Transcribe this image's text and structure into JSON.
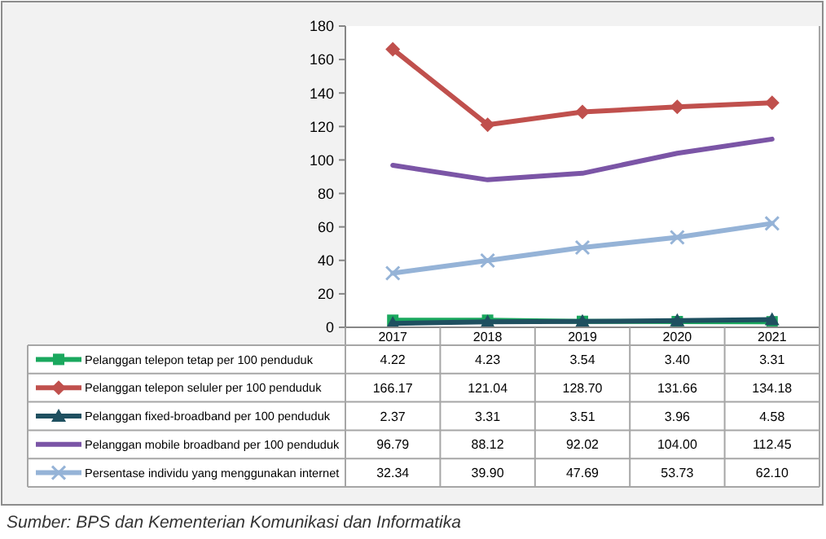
{
  "chart_data": {
    "type": "line",
    "categories": [
      "2017",
      "2018",
      "2019",
      "2020",
      "2021"
    ],
    "series": [
      {
        "name": "Pelanggan telepon tetap per 100 penduduk",
        "color": "#1aa85e",
        "marker": "square",
        "values": [
          4.22,
          4.23,
          3.54,
          3.4,
          3.31
        ],
        "value_labels": [
          "4.22",
          "4.23",
          "3.54",
          "3.40",
          "3.31"
        ]
      },
      {
        "name": "Pelanggan telepon seluler per 100 penduduk",
        "color": "#c0504d",
        "marker": "diamond",
        "values": [
          166.17,
          121.04,
          128.7,
          131.66,
          134.18
        ],
        "value_labels": [
          "166.17",
          "121.04",
          "128.70",
          "131.66",
          "134.18"
        ]
      },
      {
        "name": "Pelanggan fixed-broadband per 100 penduduk",
        "color": "#1f5060",
        "marker": "triangle",
        "values": [
          2.37,
          3.31,
          3.51,
          3.96,
          4.58
        ],
        "value_labels": [
          "2.37",
          "3.31",
          "3.51",
          "3.96",
          "4.58"
        ]
      },
      {
        "name": "Pelanggan mobile broadband per 100 penduduk",
        "color": "#7b55a6",
        "marker": "none",
        "values": [
          96.79,
          88.12,
          92.02,
          104.0,
          112.45
        ],
        "value_labels": [
          "96.79",
          "88.12",
          "92.02",
          "104.00",
          "112.45"
        ]
      },
      {
        "name": "Persentase individu yang menggunakan internet",
        "color": "#95b3d7",
        "marker": "cross",
        "values": [
          32.34,
          39.9,
          47.69,
          53.73,
          62.1
        ],
        "value_labels": [
          "32.34",
          "39.90",
          "47.69",
          "53.73",
          "62.10"
        ]
      }
    ],
    "ylim": [
      0,
      180
    ],
    "yticks": [
      0,
      20,
      40,
      60,
      80,
      100,
      120,
      140,
      160,
      180
    ],
    "grid": false,
    "legend": "bottom",
    "annotations": [
      "Sumber: BPS dan Kementerian Komunikasi dan Informatika"
    ]
  }
}
